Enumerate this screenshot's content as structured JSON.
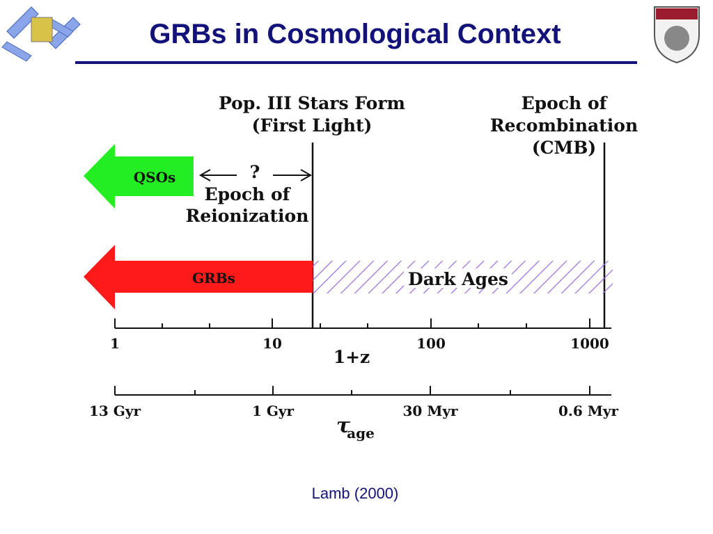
{
  "header": {
    "title": "GRBs in Cosmological Context"
  },
  "diagram": {
    "first_light": [
      "Pop. III Stars Form",
      "(First Light)"
    ],
    "recombination": [
      "Epoch of",
      "Recombination",
      "(CMB)"
    ],
    "qso_arrow": "QSOs",
    "unknown": "?",
    "reionization": [
      "Epoch of",
      "Reionization"
    ],
    "grb_arrow": "GRBs",
    "dark_ages": "Dark Ages",
    "redshift_axis": {
      "ticks": [
        "1",
        "10",
        "100",
        "1000"
      ],
      "label": "1+z"
    },
    "age_axis": {
      "ticks": [
        "13 Gyr",
        "1 Gyr",
        "30 Myr",
        "0.6 Myr"
      ],
      "label": {
        "symbol": "τ",
        "subscript": "age"
      }
    }
  },
  "caption": "Lamb (2000)"
}
